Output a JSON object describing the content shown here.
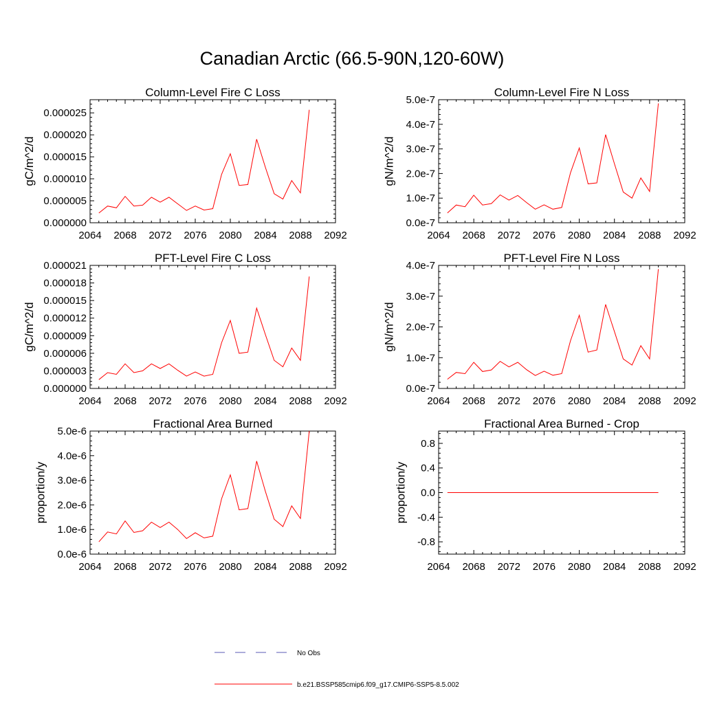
{
  "title": "Canadian Arctic (66.5-90N,120-60W)",
  "colors": {
    "model": "#ff0000",
    "obs": "#5a5ab4",
    "axis": "#000000"
  },
  "legend": {
    "items": [
      {
        "label": "No Obs",
        "style": "dashed",
        "color": "#5a5ab4"
      },
      {
        "label": "b.e21.BSSP585cmip6.f09_g17.CMIP6-SSP5-8.5.002",
        "style": "solid",
        "color": "#ff0000"
      }
    ]
  },
  "chart_data": [
    {
      "type": "line",
      "title": "Column-Level Fire C Loss",
      "ylabel": "gC/m^2/d",
      "xlim": [
        2064,
        2092
      ],
      "xticks": [
        2064,
        2068,
        2072,
        2076,
        2080,
        2084,
        2088,
        2092
      ],
      "ylim": [
        0,
        2.8e-05
      ],
      "yticks": [
        "0.000000",
        "0.000005",
        "0.000010",
        "0.000015",
        "0.000020",
        "0.000025"
      ],
      "ytick_values": [
        0,
        5e-06,
        1e-05,
        1.5e-05,
        2e-05,
        2.5e-05
      ],
      "x": [
        2065,
        2066,
        2067,
        2068,
        2069,
        2070,
        2071,
        2072,
        2073,
        2074,
        2075,
        2076,
        2077,
        2078,
        2079,
        2080,
        2081,
        2082,
        2083,
        2084,
        2085,
        2086,
        2087,
        2088,
        2089
      ],
      "series": [
        {
          "name": "b.e21.BSSP585cmip6.f09_g17.CMIP6-SSP5-8.5.002",
          "values": [
            2.2e-06,
            3.8e-06,
            3.4e-06,
            6e-06,
            3.8e-06,
            4e-06,
            5.8e-06,
            4.7e-06,
            5.8e-06,
            4.3e-06,
            2.8e-06,
            3.8e-06,
            2.9e-06,
            3.2e-06,
            1.1e-05,
            1.57e-05,
            8.5e-06,
            8.7e-06,
            1.9e-05,
            1.26e-05,
            6.6e-06,
            5.4e-06,
            9.6e-06,
            6.8e-06,
            2.57e-05
          ]
        }
      ]
    },
    {
      "type": "line",
      "title": "Column-Level Fire N Loss",
      "ylabel": "gN/m^2/d",
      "xlim": [
        2064,
        2092
      ],
      "xticks": [
        2064,
        2068,
        2072,
        2076,
        2080,
        2084,
        2088,
        2092
      ],
      "ylim": [
        0,
        5e-07
      ],
      "yticks": [
        "0.0e-7",
        "1.0e-7",
        "2.0e-7",
        "3.0e-7",
        "4.0e-7",
        "5.0e-7"
      ],
      "ytick_values": [
        0,
        1e-07,
        2e-07,
        3e-07,
        4e-07,
        5e-07
      ],
      "x": [
        2065,
        2066,
        2067,
        2068,
        2069,
        2070,
        2071,
        2072,
        2073,
        2074,
        2075,
        2076,
        2077,
        2078,
        2079,
        2080,
        2081,
        2082,
        2083,
        2084,
        2085,
        2086,
        2087,
        2088,
        2089
      ],
      "series": [
        {
          "name": "b.e21.BSSP585cmip6.f09_g17.CMIP6-SSP5-8.5.002",
          "values": [
            4e-08,
            7.2e-08,
            6.5e-08,
            1.12e-07,
            7.2e-08,
            7.8e-08,
            1.13e-07,
            9.2e-08,
            1.11e-07,
            8.2e-08,
            5.5e-08,
            7.3e-08,
            5.5e-08,
            6.2e-08,
            2.03e-07,
            3.04e-07,
            1.58e-07,
            1.62e-07,
            3.58e-07,
            2.4e-07,
            1.25e-07,
            1e-07,
            1.82e-07,
            1.27e-07,
            4.85e-07
          ]
        }
      ]
    },
    {
      "type": "line",
      "title": "PFT-Level Fire C Loss",
      "ylabel": "gC/m^2/d",
      "xlim": [
        2064,
        2092
      ],
      "xticks": [
        2064,
        2068,
        2072,
        2076,
        2080,
        2084,
        2088,
        2092
      ],
      "ylim": [
        0,
        2.1e-05
      ],
      "yticks": [
        "0.000000",
        "0.000003",
        "0.000006",
        "0.000009",
        "0.000012",
        "0.000015",
        "0.000018",
        "0.000021"
      ],
      "ytick_values": [
        0,
        3e-06,
        6e-06,
        9e-06,
        1.2e-05,
        1.5e-05,
        1.8e-05,
        2.1e-05
      ],
      "x": [
        2065,
        2066,
        2067,
        2068,
        2069,
        2070,
        2071,
        2072,
        2073,
        2074,
        2075,
        2076,
        2077,
        2078,
        2079,
        2080,
        2081,
        2082,
        2083,
        2084,
        2085,
        2086,
        2087,
        2088,
        2089
      ],
      "series": [
        {
          "name": "b.e21.BSSP585cmip6.f09_g17.CMIP6-SSP5-8.5.002",
          "values": [
            1.5e-06,
            2.7e-06,
            2.4e-06,
            4.2e-06,
            2.7e-06,
            3e-06,
            4.2e-06,
            3.4e-06,
            4.2e-06,
            3.1e-06,
            2.1e-06,
            2.8e-06,
            2.1e-06,
            2.4e-06,
            7.8e-06,
            1.16e-05,
            6e-06,
            6.2e-06,
            1.37e-05,
            9.2e-06,
            4.8e-06,
            3.7e-06,
            6.9e-06,
            4.8e-06,
            1.91e-05
          ]
        }
      ]
    },
    {
      "type": "line",
      "title": "PFT-Level Fire N Loss",
      "ylabel": "gN/m^2/d",
      "xlim": [
        2064,
        2092
      ],
      "xticks": [
        2064,
        2068,
        2072,
        2076,
        2080,
        2084,
        2088,
        2092
      ],
      "ylim": [
        0,
        4e-07
      ],
      "yticks": [
        "0.0e-7",
        "1.0e-7",
        "2.0e-7",
        "3.0e-7",
        "4.0e-7"
      ],
      "ytick_values": [
        0,
        1e-07,
        2e-07,
        3e-07,
        4e-07
      ],
      "x": [
        2065,
        2066,
        2067,
        2068,
        2069,
        2070,
        2071,
        2072,
        2073,
        2074,
        2075,
        2076,
        2077,
        2078,
        2079,
        2080,
        2081,
        2082,
        2083,
        2084,
        2085,
        2086,
        2087,
        2088,
        2089
      ],
      "series": [
        {
          "name": "b.e21.BSSP585cmip6.f09_g17.CMIP6-SSP5-8.5.002",
          "values": [
            3e-08,
            5.2e-08,
            4.8e-08,
            8.5e-08,
            5.5e-08,
            6e-08,
            8.8e-08,
            7e-08,
            8.5e-08,
            6.1e-08,
            4.2e-08,
            5.6e-08,
            4.3e-08,
            4.8e-08,
            1.55e-07,
            2.38e-07,
            1.18e-07,
            1.25e-07,
            2.73e-07,
            1.85e-07,
            9.6e-08,
            7.6e-08,
            1.39e-07,
            9.6e-08,
            3.88e-07
          ]
        }
      ]
    },
    {
      "type": "line",
      "title": "Fractional Area Burned",
      "ylabel": "proportion/y",
      "xlim": [
        2064,
        2092
      ],
      "xticks": [
        2064,
        2068,
        2072,
        2076,
        2080,
        2084,
        2088,
        2092
      ],
      "ylim": [
        0,
        5e-06
      ],
      "yticks": [
        "0.0e-6",
        "1.0e-6",
        "2.0e-6",
        "3.0e-6",
        "4.0e-6",
        "5.0e-6"
      ],
      "ytick_values": [
        0,
        1e-06,
        2e-06,
        3e-06,
        4e-06,
        5e-06
      ],
      "x": [
        2065,
        2066,
        2067,
        2068,
        2069,
        2070,
        2071,
        2072,
        2073,
        2074,
        2075,
        2076,
        2077,
        2078,
        2079,
        2080,
        2081,
        2082,
        2083,
        2084,
        2085,
        2086,
        2087,
        2088,
        2089
      ],
      "series": [
        {
          "name": "b.e21.BSSP585cmip6.f09_g17.CMIP6-SSP5-8.5.002",
          "values": [
            5e-07,
            9e-07,
            8.2e-07,
            1.35e-06,
            8.8e-07,
            9.5e-07,
            1.3e-06,
            1.08e-06,
            1.3e-06,
            1e-06,
            6.3e-07,
            8.7e-07,
            6.6e-07,
            7.3e-07,
            2.25e-06,
            3.22e-06,
            1.8e-06,
            1.85e-06,
            3.78e-06,
            2.55e-06,
            1.42e-06,
            1.12e-06,
            1.96e-06,
            1.45e-06,
            5e-06
          ]
        }
      ]
    },
    {
      "type": "line",
      "title": "Fractional Area Burned - Crop",
      "ylabel": "proportion/y",
      "xlim": [
        2064,
        2092
      ],
      "xticks": [
        2064,
        2068,
        2072,
        2076,
        2080,
        2084,
        2088,
        2092
      ],
      "ylim": [
        -1,
        1
      ],
      "yticks": [
        "-0.8",
        "-0.4",
        "0.0",
        "0.4",
        "0.8"
      ],
      "ytick_values": [
        -0.8,
        -0.4,
        0,
        0.4,
        0.8
      ],
      "x": [
        2065,
        2066,
        2067,
        2068,
        2069,
        2070,
        2071,
        2072,
        2073,
        2074,
        2075,
        2076,
        2077,
        2078,
        2079,
        2080,
        2081,
        2082,
        2083,
        2084,
        2085,
        2086,
        2087,
        2088,
        2089
      ],
      "series": [
        {
          "name": "b.e21.BSSP585cmip6.f09_g17.CMIP6-SSP5-8.5.002",
          "values": [
            0,
            0,
            0,
            0,
            0,
            0,
            0,
            0,
            0,
            0,
            0,
            0,
            0,
            0,
            0,
            0,
            0,
            0,
            0,
            0,
            0,
            0,
            0,
            0,
            0
          ]
        }
      ]
    }
  ]
}
